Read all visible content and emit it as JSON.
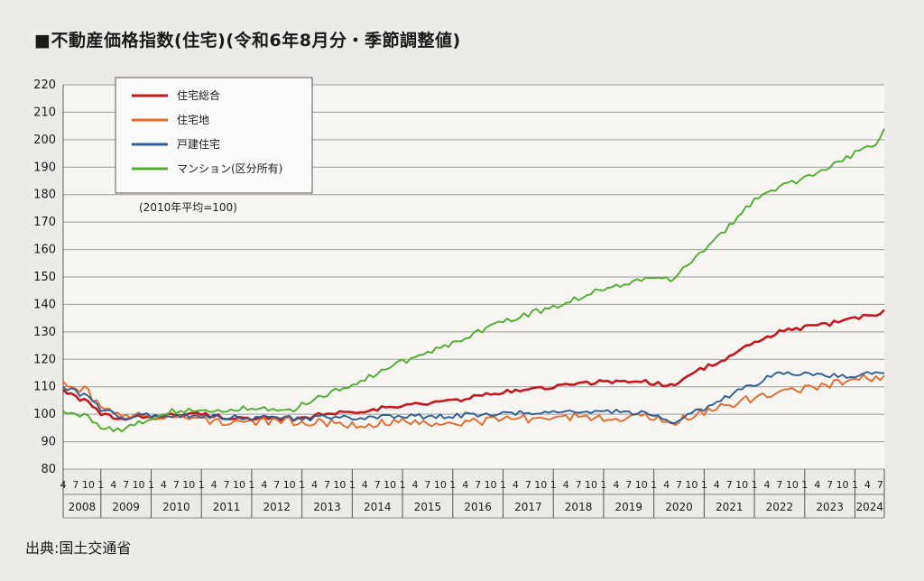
{
  "header": {
    "title": "■不動産価格指数(住宅)(令和6年8月分・季節調整値)"
  },
  "footer": {
    "source": "出典:国土交通省"
  },
  "chart_data": {
    "type": "line",
    "title": "■不動産価格指数(住宅)(令和6年8月分・季節調整値)",
    "note": "(2010年平均=100)",
    "ylim": [
      80,
      220
    ],
    "y_ticks": [
      80,
      90,
      100,
      110,
      120,
      130,
      140,
      150,
      160,
      170,
      180,
      190,
      200,
      210,
      220
    ],
    "x_start": "2008-04",
    "x_end": "2024-08",
    "month_ticks": [
      "1",
      "4",
      "7",
      "10"
    ],
    "years": [
      "2008",
      "2009",
      "2010",
      "2011",
      "2012",
      "2013",
      "2014",
      "2015",
      "2016",
      "2017",
      "2018",
      "2019",
      "2020",
      "2021",
      "2022",
      "2023",
      "2024"
    ],
    "grid": true,
    "legend_position": "top-left",
    "series": [
      {
        "name": "住宅総合",
        "color": "#c8161d",
        "anchors": [
          [
            "2008-04",
            109
          ],
          [
            "2008-10",
            104
          ],
          [
            "2009-01",
            100
          ],
          [
            "2009-06",
            98
          ],
          [
            "2010-01",
            99.5
          ],
          [
            "2011-01",
            100
          ],
          [
            "2012-01",
            98
          ],
          [
            "2013-01",
            98.5
          ],
          [
            "2013-06",
            100
          ],
          [
            "2014-01",
            101
          ],
          [
            "2015-01",
            103
          ],
          [
            "2016-01",
            105
          ],
          [
            "2017-01",
            108
          ],
          [
            "2018-01",
            110
          ],
          [
            "2019-01",
            112
          ],
          [
            "2019-10",
            112
          ],
          [
            "2020-05",
            110.5
          ],
          [
            "2021-01",
            117
          ],
          [
            "2021-06",
            120
          ],
          [
            "2022-01",
            126
          ],
          [
            "2022-07",
            130
          ],
          [
            "2023-01",
            131.5
          ],
          [
            "2023-07",
            133
          ],
          [
            "2024-01",
            135
          ],
          [
            "2024-07",
            136.5
          ],
          [
            "2024-08",
            138
          ]
        ],
        "noise": 0.8
      },
      {
        "name": "住宅地",
        "color": "#e86a2a",
        "anchors": [
          [
            "2008-04",
            112
          ],
          [
            "2008-10",
            108
          ],
          [
            "2009-01",
            102
          ],
          [
            "2009-06",
            99
          ],
          [
            "2010-01",
            99.5
          ],
          [
            "2011-01",
            98
          ],
          [
            "2012-01",
            97
          ],
          [
            "2013-01",
            97.5
          ],
          [
            "2014-01",
            96.5
          ],
          [
            "2015-01",
            97
          ],
          [
            "2016-01",
            97
          ],
          [
            "2017-01",
            98
          ],
          [
            "2018-01",
            99
          ],
          [
            "2019-01",
            99
          ],
          [
            "2020-01",
            99
          ],
          [
            "2020-05",
            97
          ],
          [
            "2021-01",
            101
          ],
          [
            "2022-01",
            106
          ],
          [
            "2023-01",
            109
          ],
          [
            "2024-01",
            113
          ],
          [
            "2024-08",
            114
          ]
        ],
        "noise": 1.6
      },
      {
        "name": "戸建住宅",
        "color": "#2d5e95",
        "anchors": [
          [
            "2008-04",
            110
          ],
          [
            "2008-10",
            106
          ],
          [
            "2009-01",
            102
          ],
          [
            "2009-06",
            99
          ],
          [
            "2010-01",
            99.5
          ],
          [
            "2011-01",
            99.5
          ],
          [
            "2012-01",
            98.5
          ],
          [
            "2013-01",
            98.5
          ],
          [
            "2014-01",
            99
          ],
          [
            "2015-01",
            99
          ],
          [
            "2016-01",
            99.5
          ],
          [
            "2017-01",
            100
          ],
          [
            "2018-01",
            101
          ],
          [
            "2019-01",
            101
          ],
          [
            "2020-01",
            100
          ],
          [
            "2020-05",
            97
          ],
          [
            "2021-01",
            102
          ],
          [
            "2021-06",
            106
          ],
          [
            "2022-01",
            111
          ],
          [
            "2022-07",
            115
          ],
          [
            "2023-01",
            114.5
          ],
          [
            "2024-01",
            114
          ],
          [
            "2024-08",
            115
          ]
        ],
        "noise": 1.0
      },
      {
        "name": "マンション(区分所有)",
        "color": "#4fae2e",
        "anchors": [
          [
            "2008-04",
            101
          ],
          [
            "2008-10",
            99
          ],
          [
            "2009-01",
            95
          ],
          [
            "2009-06",
            94.5
          ],
          [
            "2009-12",
            98
          ],
          [
            "2010-06",
            101
          ],
          [
            "2011-01",
            101.5
          ],
          [
            "2012-01",
            102
          ],
          [
            "2012-10",
            101
          ],
          [
            "2013-03",
            105
          ],
          [
            "2014-01",
            111
          ],
          [
            "2015-01",
            119
          ],
          [
            "2016-01",
            126
          ],
          [
            "2016-07",
            130
          ],
          [
            "2017-01",
            134
          ],
          [
            "2018-01",
            139
          ],
          [
            "2019-01",
            146
          ],
          [
            "2020-01",
            150
          ],
          [
            "2020-05",
            149
          ],
          [
            "2021-01",
            160
          ],
          [
            "2021-06",
            167
          ],
          [
            "2022-01",
            178
          ],
          [
            "2022-07",
            183
          ],
          [
            "2023-01",
            186
          ],
          [
            "2024-01",
            195
          ],
          [
            "2024-06",
            199
          ],
          [
            "2024-08",
            204
          ]
        ],
        "noise": 1.0
      }
    ]
  }
}
